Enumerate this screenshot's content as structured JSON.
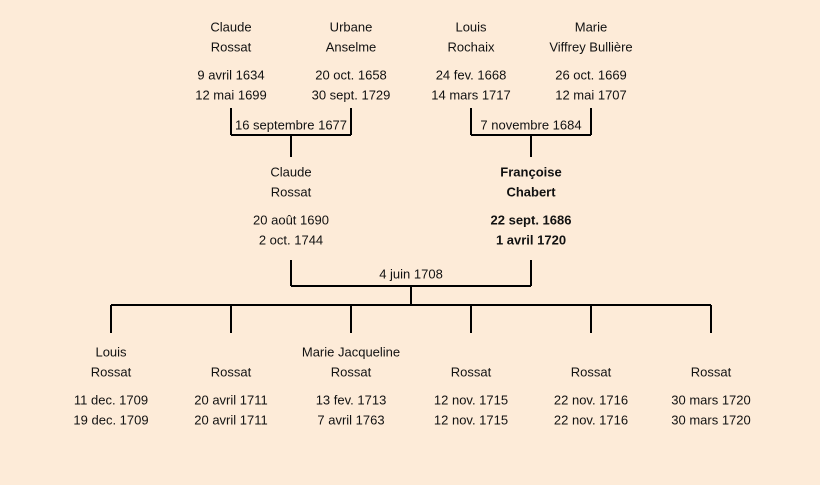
{
  "generations": [
    {
      "people": [
        {
          "first": "Claude",
          "last": "Rossat",
          "birth": "9 avril 1634",
          "death": "12 mai 1699"
        },
        {
          "first": "Urbane",
          "last": "Anselme",
          "birth": "20 oct. 1658",
          "death": "30 sept. 1729"
        },
        {
          "first": "Louis",
          "last": "Rochaix",
          "birth": "24 fev. 1668",
          "death": "14 mars 1717"
        },
        {
          "first": "Marie",
          "last": "Viffrey Bullière",
          "birth": "26 oct. 1669",
          "death": "12 mai 1707"
        }
      ],
      "marriages": [
        "16 septembre 1677",
        "7 novembre 1684"
      ]
    },
    {
      "people": [
        {
          "first": "Claude",
          "last": "Rossat",
          "birth": "20 août 1690",
          "death": "2 oct. 1744",
          "highlight": false
        },
        {
          "first": "Françoise",
          "last": "Chabert",
          "birth": "22 sept. 1686",
          "death": "1 avril 1720",
          "highlight": true
        }
      ],
      "marriages": [
        "4 juin 1708"
      ]
    },
    {
      "people": [
        {
          "first": "Louis",
          "last": "Rossat",
          "birth": "11 dec. 1709",
          "death": "19 dec. 1709"
        },
        {
          "first": "",
          "last": "Rossat",
          "birth": "20 avril 1711",
          "death": "20 avril 1711"
        },
        {
          "first": "Marie Jacqueline",
          "last": "Rossat",
          "birth": "13 fev. 1713",
          "death": "7 avril 1763"
        },
        {
          "first": "",
          "last": "Rossat",
          "birth": "12 nov. 1715",
          "death": "12 nov. 1715"
        },
        {
          "first": "",
          "last": "Rossat",
          "birth": "22 nov. 1716",
          "death": "22 nov. 1716"
        },
        {
          "first": "",
          "last": "Rossat",
          "birth": "30 mars 1720",
          "death": "30 mars 1720"
        }
      ],
      "marriages": []
    }
  ],
  "colors": {
    "background": "#fdebd8",
    "line": "#000000",
    "text": "#111111"
  }
}
